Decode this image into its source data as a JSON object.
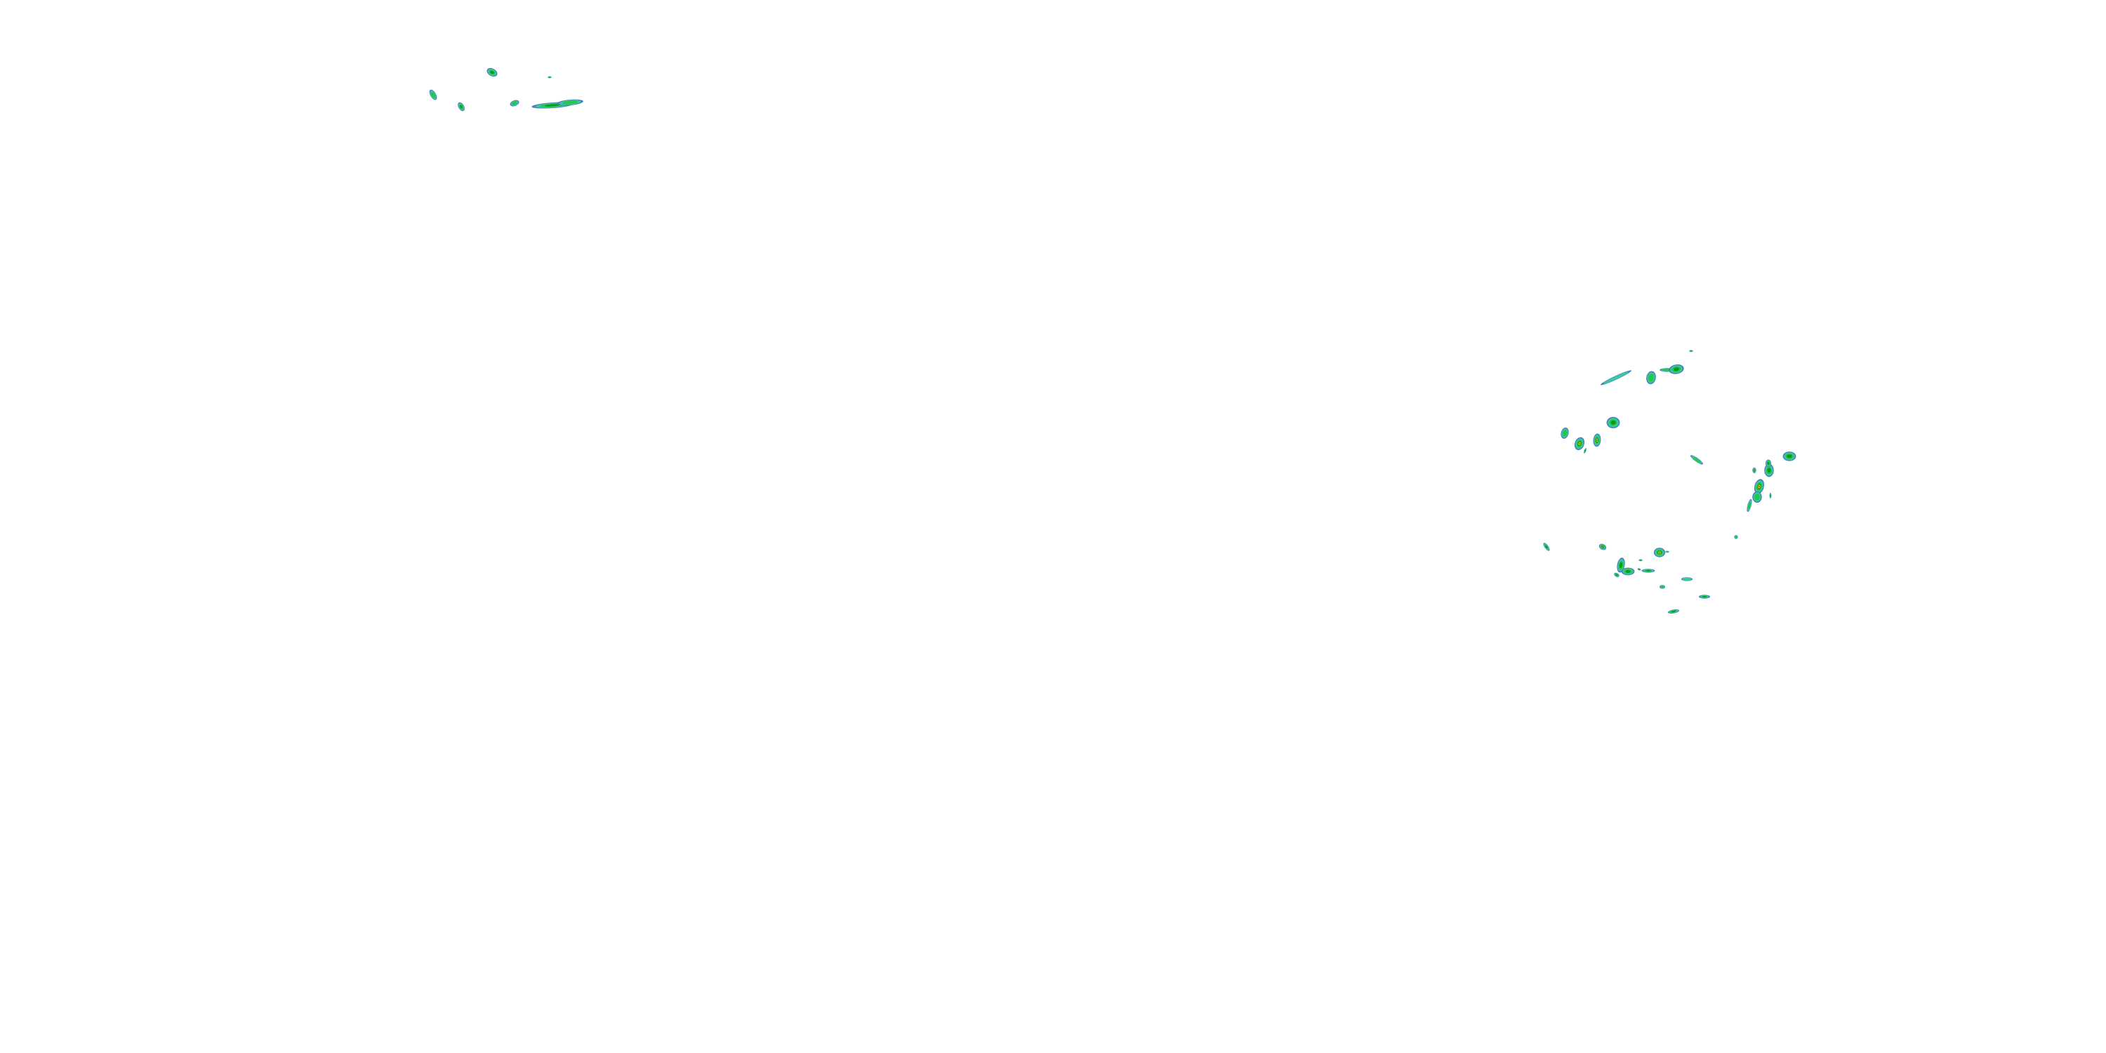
{
  "map": {
    "layer": "radar-reflectivity",
    "background": "#ffffff",
    "palette": {
      "light": "#4a7fc0",
      "light_moderate": "#3cc8a0",
      "moderate": "#22c84a",
      "moderate_heavy": "#0a9a1a",
      "heavy": "#f0e000",
      "very_heavy": "#f08c00",
      "extreme": "#e81c1c"
    }
  }
}
